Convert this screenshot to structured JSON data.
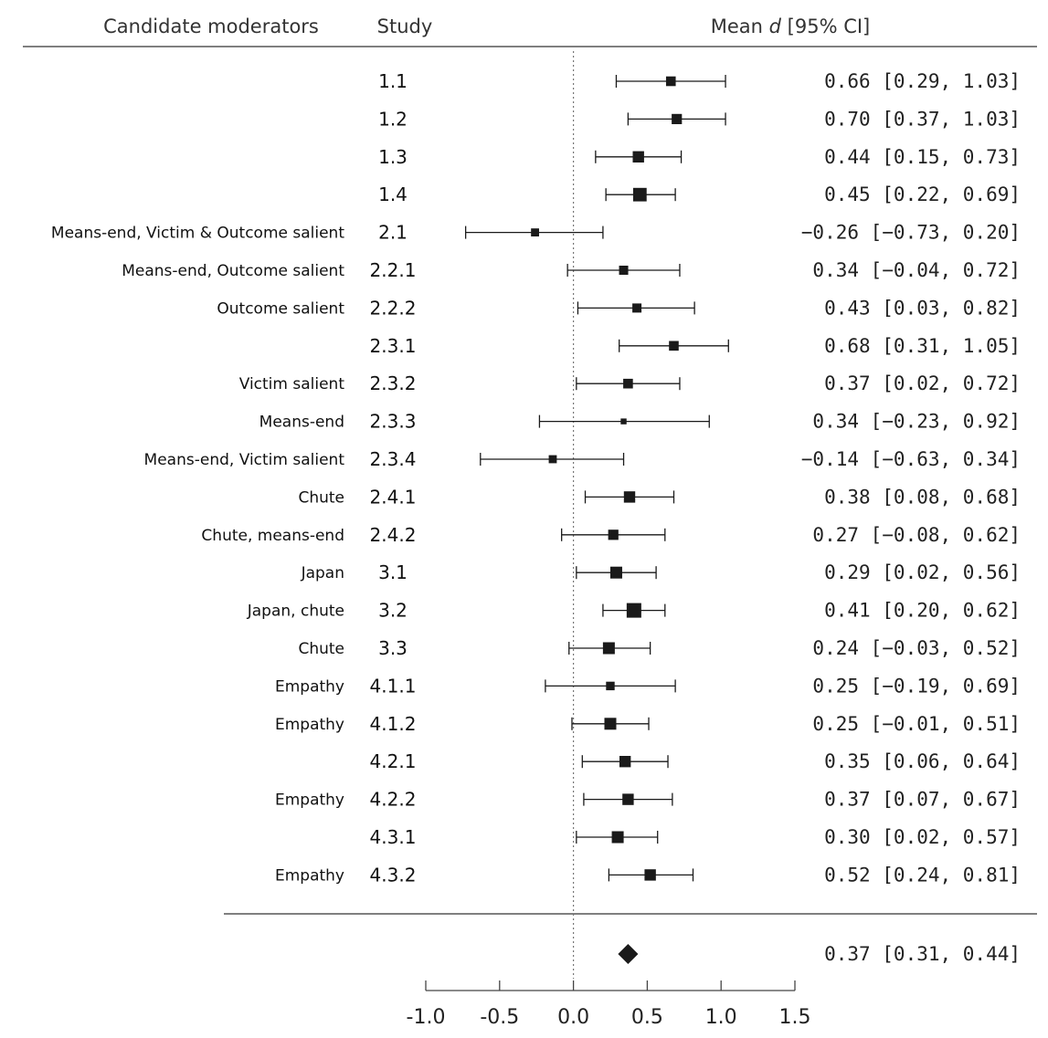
{
  "chart_data": {
    "type": "forest",
    "headers": {
      "moderators": "Candidate moderators",
      "study": "Study",
      "effect_prefix": "Mean ",
      "effect_symbol": "d",
      "effect_suffix": "  [95% CI]"
    },
    "rows": [
      {
        "moderator": "",
        "study": "1.1",
        "mean": 0.66,
        "lo": 0.29,
        "hi": 1.03,
        "label": "0.66 [0.29, 1.03]",
        "weight": 0.55
      },
      {
        "moderator": "",
        "study": "1.2",
        "mean": 0.7,
        "lo": 0.37,
        "hi": 1.03,
        "label": "0.70 [0.37, 1.03]",
        "weight": 0.6
      },
      {
        "moderator": "",
        "study": "1.3",
        "mean": 0.44,
        "lo": 0.15,
        "hi": 0.73,
        "label": "0.44 [0.15, 0.73]",
        "weight": 0.7
      },
      {
        "moderator": "",
        "study": "1.4",
        "mean": 0.45,
        "lo": 0.22,
        "hi": 0.69,
        "label": "0.45 [0.22, 0.69]",
        "weight": 0.9
      },
      {
        "moderator": "Means-end, Victim & Outcome salient",
        "study": "2.1",
        "mean": -0.26,
        "lo": -0.73,
        "hi": 0.2,
        "label": "−0.26 [−0.73, 0.20]",
        "weight": 0.4
      },
      {
        "moderator": "Means-end, Outcome salient",
        "study": "2.2.1",
        "mean": 0.34,
        "lo": -0.04,
        "hi": 0.72,
        "label": "0.34 [−0.04, 0.72]",
        "weight": 0.5
      },
      {
        "moderator": "Outcome salient",
        "study": "2.2.2",
        "mean": 0.43,
        "lo": 0.03,
        "hi": 0.82,
        "label": "0.43 [0.03, 0.82]",
        "weight": 0.5
      },
      {
        "moderator": "",
        "study": "2.3.1",
        "mean": 0.68,
        "lo": 0.31,
        "hi": 1.05,
        "label": "0.68 [0.31, 1.05]",
        "weight": 0.55
      },
      {
        "moderator": "Victim salient",
        "study": "2.3.2",
        "mean": 0.37,
        "lo": 0.02,
        "hi": 0.72,
        "label": "0.37 [0.02, 0.72]",
        "weight": 0.55
      },
      {
        "moderator": "Means-end",
        "study": "2.3.3",
        "mean": 0.34,
        "lo": -0.23,
        "hi": 0.92,
        "label": "0.34 [−0.23, 0.92]",
        "weight": 0.2
      },
      {
        "moderator": "Means-end, Victim salient",
        "study": "2.3.4",
        "mean": -0.14,
        "lo": -0.63,
        "hi": 0.34,
        "label": "−0.14 [−0.63, 0.34]",
        "weight": 0.4
      },
      {
        "moderator": "Chute",
        "study": "2.4.1",
        "mean": 0.38,
        "lo": 0.08,
        "hi": 0.68,
        "label": "0.38 [0.08, 0.68]",
        "weight": 0.7
      },
      {
        "moderator": "Chute, means-end",
        "study": "2.4.2",
        "mean": 0.27,
        "lo": -0.08,
        "hi": 0.62,
        "label": "0.27 [−0.08, 0.62]",
        "weight": 0.6
      },
      {
        "moderator": "Japan",
        "study": "3.1",
        "mean": 0.29,
        "lo": 0.02,
        "hi": 0.56,
        "label": "0.29 [0.02, 0.56]",
        "weight": 0.75
      },
      {
        "moderator": "Japan, chute",
        "study": "3.2",
        "mean": 0.41,
        "lo": 0.2,
        "hi": 0.62,
        "label": "0.41 [0.20, 0.62]",
        "weight": 1.0
      },
      {
        "moderator": "Chute",
        "study": "3.3",
        "mean": 0.24,
        "lo": -0.03,
        "hi": 0.52,
        "label": "0.24 [−0.03, 0.52]",
        "weight": 0.75
      },
      {
        "moderator": "Empathy",
        "study": "4.1.1",
        "mean": 0.25,
        "lo": -0.19,
        "hi": 0.69,
        "label": "0.25 [−0.19, 0.69]",
        "weight": 0.45
      },
      {
        "moderator": "Empathy",
        "study": "4.1.2",
        "mean": 0.25,
        "lo": -0.01,
        "hi": 0.51,
        "label": "0.25 [−0.01, 0.51]",
        "weight": 0.75
      },
      {
        "moderator": "",
        "study": "4.2.1",
        "mean": 0.35,
        "lo": 0.06,
        "hi": 0.64,
        "label": "0.35 [0.06, 0.64]",
        "weight": 0.7
      },
      {
        "moderator": "Empathy",
        "study": "4.2.2",
        "mean": 0.37,
        "lo": 0.07,
        "hi": 0.67,
        "label": "0.37 [0.07, 0.67]",
        "weight": 0.7
      },
      {
        "moderator": "",
        "study": "4.3.1",
        "mean": 0.3,
        "lo": 0.02,
        "hi": 0.57,
        "label": "0.30 [0.02, 0.57]",
        "weight": 0.75
      },
      {
        "moderator": "Empathy",
        "study": "4.3.2",
        "mean": 0.52,
        "lo": 0.24,
        "hi": 0.81,
        "label": "0.52 [0.24, 0.81]",
        "weight": 0.7
      }
    ],
    "summary": {
      "mean": 0.37,
      "lo": 0.31,
      "hi": 0.44,
      "label": "0.37 [0.31, 0.44]"
    },
    "x_axis": {
      "min": -1.0,
      "max": 1.5,
      "ticks": [
        -1.0,
        -0.5,
        0.0,
        0.5,
        1.0,
        1.5
      ],
      "tick_labels": [
        "-1.0",
        "-0.5",
        "0.0",
        "0.5",
        "1.0",
        "1.5"
      ]
    },
    "reference_line": 0.0,
    "colors": {
      "marks": "#1a1a1a",
      "text": "#111111",
      "rules": "#333333"
    }
  }
}
